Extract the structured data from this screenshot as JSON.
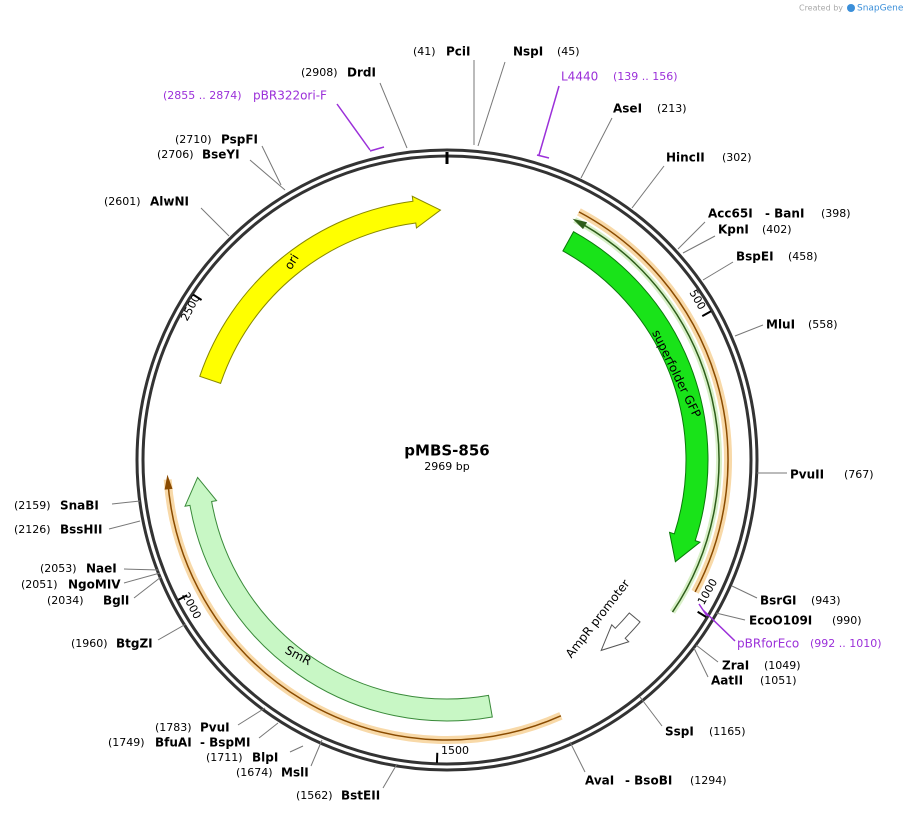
{
  "credit": {
    "prefix": "Created by",
    "brand": "SnapGene"
  },
  "map": {
    "name": "pMBS-856",
    "length": "2969 bp",
    "sites": [
      {
        "names": [
          "PciI"
        ],
        "position": "(41)"
      },
      {
        "names": [
          "NspI"
        ],
        "position": "(45)"
      },
      {
        "names": [
          "AseI"
        ],
        "position": "(213)"
      },
      {
        "names": [
          "HincII"
        ],
        "position": "(302)"
      },
      {
        "names": [
          "Acc65I",
          "- BanI"
        ],
        "position": "(398)"
      },
      {
        "names": [
          "KpnI"
        ],
        "position": "(402)"
      },
      {
        "names": [
          "BspEI"
        ],
        "position": "(458)"
      },
      {
        "names": [
          "MluI"
        ],
        "position": "(558)"
      },
      {
        "names": [
          "PvuII"
        ],
        "position": "(767)"
      },
      {
        "names": [
          "BsrGI"
        ],
        "position": "(943)"
      },
      {
        "names": [
          "EcoO109I"
        ],
        "position": "(990)"
      },
      {
        "names": [
          "ZraI"
        ],
        "position": "(1049)"
      },
      {
        "names": [
          "AatII"
        ],
        "position": "(1051)"
      },
      {
        "names": [
          "SspI"
        ],
        "position": "(1165)"
      },
      {
        "names": [
          "AvaI",
          "- BsoBI"
        ],
        "position": "(1294)"
      },
      {
        "names": [
          "BstEII"
        ],
        "position": "(1562)"
      },
      {
        "names": [
          "MslI"
        ],
        "position": "(1674)"
      },
      {
        "names": [
          "BlpI"
        ],
        "position": "(1711)"
      },
      {
        "names": [
          "BfuAI",
          "- BspMI"
        ],
        "position": "(1749)"
      },
      {
        "names": [
          "PvuI"
        ],
        "position": "(1783)"
      },
      {
        "names": [
          "BtgZI"
        ],
        "position": "(1960)"
      },
      {
        "names": [
          "BglI"
        ],
        "position": "(2034)"
      },
      {
        "names": [
          "NgoMIV"
        ],
        "position": "(2051)"
      },
      {
        "names": [
          "NaeI"
        ],
        "position": "(2053)"
      },
      {
        "names": [
          "BssHII"
        ],
        "position": "(2126)"
      },
      {
        "names": [
          "SnaBI"
        ],
        "position": "(2159)"
      },
      {
        "names": [
          "AlwNI"
        ],
        "position": "(2601)"
      },
      {
        "names": [
          "BseYI"
        ],
        "position": "(2706)"
      },
      {
        "names": [
          "PspFI"
        ],
        "position": "(2710)"
      },
      {
        "names": [
          "DrdI"
        ],
        "position": "(2908)"
      }
    ],
    "primers": [
      {
        "name": "L4440",
        "range": "(139 .. 156)"
      },
      {
        "name": "pBR322ori-F",
        "range": "(2855 .. 2874)"
      },
      {
        "name": "pBRforEco",
        "range": "(992 .. 1010)"
      }
    ],
    "features": [
      {
        "label": "ori"
      },
      {
        "label": "superfolder GFP"
      },
      {
        "label": "AmpR promoter"
      },
      {
        "label": "SmR"
      }
    ],
    "ticks": [
      "500",
      "1000",
      "1500",
      "2000",
      "2500"
    ]
  }
}
